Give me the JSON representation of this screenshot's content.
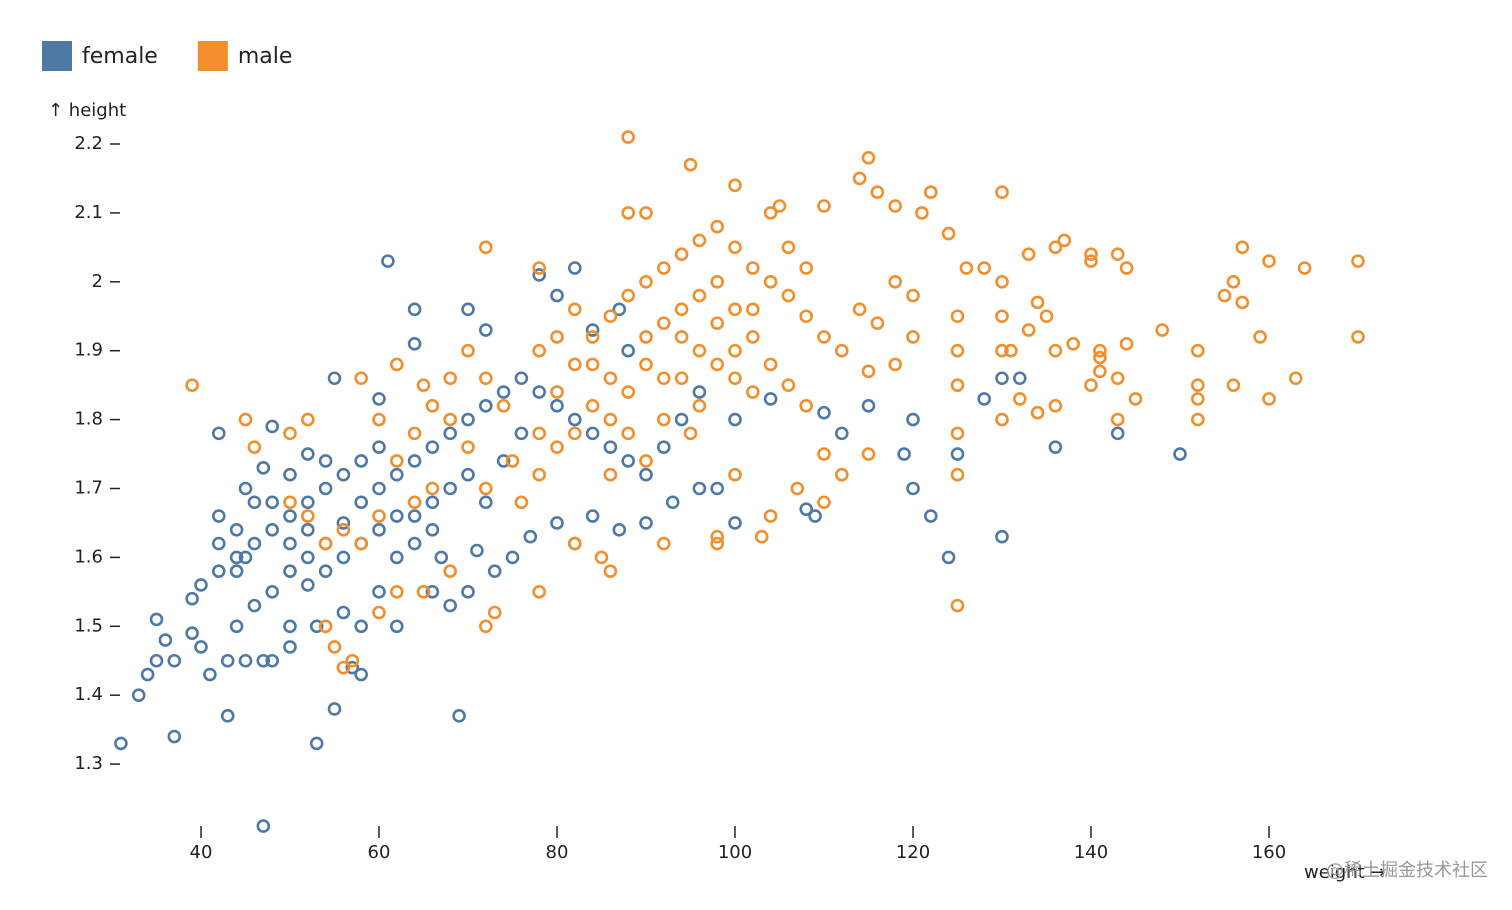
{
  "chart_data": {
    "type": "scatter",
    "x_label": "weight →",
    "y_label": "↑ height",
    "watermark": "@稀土掘金技术社区",
    "xlim": [
      30,
      172
    ],
    "ylim": [
      1.21,
      2.21
    ],
    "xticks": [
      40,
      60,
      80,
      100,
      120,
      140,
      160
    ],
    "yticks": [
      1.3,
      1.4,
      1.5,
      1.6,
      1.7,
      1.8,
      1.9,
      2.0,
      2.1,
      2.2
    ],
    "legend": "top-left",
    "series": [
      {
        "name": "female",
        "color": "#4e79a7",
        "x": [
          31,
          37,
          47,
          53,
          43,
          55,
          69,
          33,
          34,
          35,
          36,
          35,
          37,
          41,
          39,
          40,
          43,
          45,
          47,
          48,
          50,
          57,
          58,
          39,
          40,
          42,
          44,
          42,
          45,
          47,
          48,
          42,
          61,
          64,
          64,
          55,
          60,
          70,
          72,
          78,
          80,
          82,
          84,
          87,
          88,
          96,
          100,
          104,
          110,
          112,
          115,
          120,
          119,
          120,
          122,
          124,
          125,
          128,
          130,
          130,
          132,
          136,
          143,
          150,
          108,
          109,
          98,
          100,
          96,
          93,
          90,
          87,
          84,
          82,
          80,
          77,
          75,
          73,
          71,
          70,
          68,
          67,
          66,
          62,
          60,
          58,
          56,
          53,
          50,
          46,
          44,
          48,
          50,
          52,
          54,
          56,
          58,
          60,
          62,
          64,
          66,
          68,
          70,
          72,
          74,
          76,
          78,
          80,
          82,
          84,
          86,
          88,
          90,
          92,
          94,
          46,
          48,
          50,
          52,
          54,
          56,
          58,
          60,
          62,
          64,
          66,
          44,
          46,
          52,
          54,
          56,
          58,
          60,
          62,
          64,
          66,
          68,
          70,
          72,
          74,
          76,
          50,
          52,
          54,
          48,
          45,
          44,
          42,
          50,
          52
        ],
        "values": [
          1.33,
          1.34,
          1.21,
          1.33,
          1.37,
          1.38,
          1.37,
          1.4,
          1.43,
          1.45,
          1.48,
          1.51,
          1.45,
          1.43,
          1.49,
          1.47,
          1.45,
          1.45,
          1.45,
          1.45,
          1.47,
          1.44,
          1.43,
          1.54,
          1.56,
          1.58,
          1.6,
          1.66,
          1.7,
          1.73,
          1.79,
          1.78,
          2.03,
          1.96,
          1.91,
          1.86,
          1.83,
          1.96,
          1.93,
          2.01,
          1.98,
          2.02,
          1.93,
          1.96,
          1.9,
          1.84,
          1.8,
          1.83,
          1.81,
          1.78,
          1.82,
          1.8,
          1.75,
          1.7,
          1.66,
          1.6,
          1.75,
          1.83,
          1.86,
          1.63,
          1.86,
          1.76,
          1.78,
          1.75,
          1.67,
          1.66,
          1.7,
          1.65,
          1.7,
          1.68,
          1.65,
          1.64,
          1.66,
          1.62,
          1.65,
          1.63,
          1.6,
          1.58,
          1.61,
          1.55,
          1.53,
          1.6,
          1.55,
          1.5,
          1.55,
          1.5,
          1.52,
          1.5,
          1.5,
          1.53,
          1.5,
          1.55,
          1.58,
          1.6,
          1.62,
          1.65,
          1.68,
          1.7,
          1.72,
          1.74,
          1.76,
          1.78,
          1.8,
          1.82,
          1.84,
          1.86,
          1.84,
          1.82,
          1.8,
          1.78,
          1.76,
          1.74,
          1.72,
          1.76,
          1.8,
          1.62,
          1.64,
          1.66,
          1.68,
          1.7,
          1.72,
          1.74,
          1.76,
          1.66,
          1.62,
          1.68,
          1.58,
          1.68,
          1.56,
          1.58,
          1.6,
          1.62,
          1.64,
          1.6,
          1.66,
          1.64,
          1.7,
          1.72,
          1.68,
          1.74,
          1.78,
          1.72,
          1.75,
          1.74,
          1.68,
          1.6,
          1.64,
          1.62,
          1.62,
          1.64
        ]
      },
      {
        "name": "male",
        "color": "#f28e2c",
        "x": [
          39,
          45,
          46,
          52,
          50,
          57,
          56,
          55,
          54,
          60,
          62,
          65,
          68,
          72,
          73,
          78,
          82,
          86,
          85,
          92,
          103,
          98,
          125,
          88,
          95,
          100,
          115,
          114,
          116,
          122,
          130,
          121,
          118,
          72,
          78,
          90,
          88,
          105,
          104,
          110,
          124,
          126,
          128,
          133,
          136,
          137,
          140,
          140,
          143,
          144,
          148,
          152,
          155,
          156,
          157,
          160,
          164,
          170,
          170,
          159,
          160,
          163,
          157,
          156,
          152,
          152,
          145,
          143,
          144,
          141,
          140,
          138,
          136,
          135,
          134,
          133,
          131,
          132,
          134,
          136,
          141,
          141,
          143,
          152,
          130,
          130,
          130,
          130,
          125,
          125,
          125,
          125,
          125,
          120,
          118,
          115,
          115,
          112,
          110,
          107,
          104,
          110,
          100,
          98,
          90,
          95,
          60,
          58,
          62,
          65,
          68,
          70,
          72,
          75,
          78,
          80,
          82,
          84,
          86,
          88,
          90,
          92,
          94,
          96,
          98,
          100,
          102,
          104,
          106,
          108,
          110,
          112,
          114,
          116,
          118,
          120,
          96,
          98,
          100,
          102,
          104,
          106,
          108,
          92,
          94,
          90,
          88,
          86,
          84,
          82,
          80,
          78,
          76,
          74,
          72,
          70,
          68,
          66,
          64,
          62,
          60,
          58,
          56,
          54,
          52,
          50,
          66,
          64,
          86,
          88,
          92,
          96,
          100,
          102,
          96,
          94,
          92,
          90,
          98,
          100,
          106,
          108,
          84,
          86,
          80,
          82,
          78,
          94,
          98,
          102
        ],
        "values": [
          1.85,
          1.8,
          1.76,
          1.8,
          1.78,
          1.45,
          1.44,
          1.47,
          1.5,
          1.52,
          1.55,
          1.55,
          1.58,
          1.5,
          1.52,
          1.55,
          1.62,
          1.58,
          1.6,
          1.62,
          1.63,
          1.63,
          1.53,
          2.21,
          2.17,
          2.14,
          2.18,
          2.15,
          2.13,
          2.13,
          2.13,
          2.1,
          2.11,
          2.05,
          2.02,
          2.1,
          2.1,
          2.11,
          2.1,
          2.11,
          2.07,
          2.02,
          2.02,
          2.04,
          2.05,
          2.06,
          2.04,
          2.03,
          2.04,
          2.02,
          1.93,
          1.9,
          1.98,
          2.0,
          2.05,
          2.03,
          2.02,
          2.03,
          1.92,
          1.92,
          1.83,
          1.86,
          1.97,
          1.85,
          1.85,
          1.83,
          1.83,
          1.86,
          1.91,
          1.9,
          1.85,
          1.91,
          1.9,
          1.95,
          1.97,
          1.93,
          1.9,
          1.83,
          1.81,
          1.82,
          1.89,
          1.87,
          1.8,
          1.8,
          1.8,
          1.9,
          1.95,
          2.0,
          1.85,
          1.78,
          1.72,
          1.9,
          1.95,
          1.92,
          1.88,
          1.75,
          1.87,
          1.72,
          1.68,
          1.7,
          1.66,
          1.75,
          1.72,
          1.62,
          1.74,
          1.78,
          1.8,
          1.86,
          1.88,
          1.85,
          1.8,
          1.76,
          1.7,
          1.74,
          1.78,
          1.84,
          1.88,
          1.92,
          1.95,
          1.98,
          2.0,
          2.02,
          2.04,
          2.06,
          2.08,
          2.05,
          2.02,
          2.0,
          1.98,
          1.95,
          1.92,
          1.9,
          1.96,
          1.94,
          2.0,
          1.98,
          1.9,
          1.94,
          1.96,
          1.92,
          1.88,
          1.85,
          1.82,
          1.86,
          1.92,
          1.88,
          1.84,
          1.86,
          1.82,
          1.78,
          1.76,
          1.72,
          1.68,
          1.82,
          1.86,
          1.9,
          1.86,
          1.82,
          1.78,
          1.74,
          1.66,
          1.62,
          1.64,
          1.62,
          1.66,
          1.68,
          1.7,
          1.68,
          1.72,
          1.78,
          1.8,
          1.82,
          1.86,
          1.84,
          1.98,
          1.96,
          1.94,
          1.92,
          2.0,
          1.9,
          2.05,
          2.02,
          1.88,
          1.8,
          1.92,
          1.96,
          1.9,
          1.86,
          1.88,
          1.96
        ]
      }
    ]
  }
}
